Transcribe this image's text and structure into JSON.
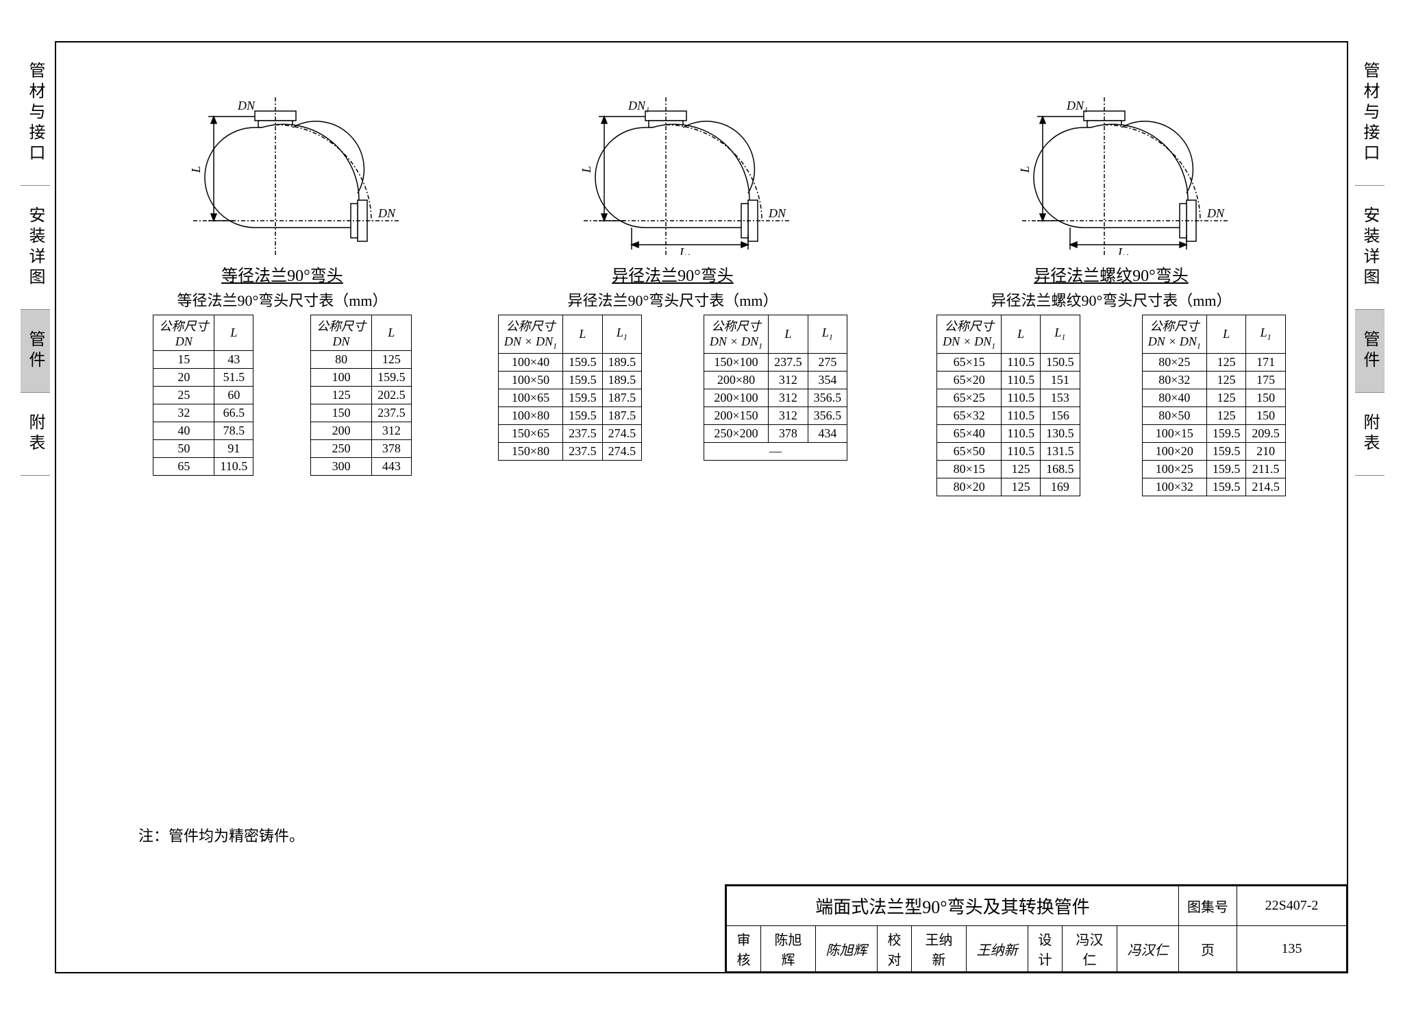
{
  "tabs": [
    "管材与接口",
    "安装详图",
    "管件",
    "附表"
  ],
  "active_tab_index": 2,
  "hrule_positions": [
    260,
    510,
    760,
    1010
  ],
  "sections": [
    {
      "diagram_labels": {
        "top": "DN",
        "side": "L",
        "side2": "",
        "right": "DN"
      },
      "title": "等径法兰90°弯头",
      "subtitle": "等径法兰90°弯头尺寸表（mm）",
      "dual": true,
      "headers": [
        [
          "公称尺寸<br><span class='ital'>DN</span>",
          "<span class='ital'>L</span>"
        ]
      ],
      "left_rows": [
        [
          "15",
          "43"
        ],
        [
          "20",
          "51.5"
        ],
        [
          "25",
          "60"
        ],
        [
          "32",
          "66.5"
        ],
        [
          "40",
          "78.5"
        ],
        [
          "50",
          "91"
        ],
        [
          "65",
          "110.5"
        ]
      ],
      "right_rows": [
        [
          "80",
          "125"
        ],
        [
          "100",
          "159.5"
        ],
        [
          "125",
          "202.5"
        ],
        [
          "150",
          "237.5"
        ],
        [
          "200",
          "312"
        ],
        [
          "250",
          "378"
        ],
        [
          "300",
          "443"
        ]
      ]
    },
    {
      "diagram_labels": {
        "top": "DN₁",
        "side": "L",
        "side2": "L₁",
        "right": "DN"
      },
      "title": "异径法兰90°弯头",
      "subtitle": "异径法兰90°弯头尺寸表（mm）",
      "dual": true,
      "headers": [
        [
          "公称尺寸<br><span class='ital'>DN × DN</span><span class='sub'>1</span>",
          "<span class='ital'>L</span>",
          "<span class='ital'>L</span><span class='sub'>1</span>"
        ]
      ],
      "left_rows": [
        [
          "100×40",
          "159.5",
          "189.5"
        ],
        [
          "100×50",
          "159.5",
          "189.5"
        ],
        [
          "100×65",
          "159.5",
          "187.5"
        ],
        [
          "100×80",
          "159.5",
          "187.5"
        ],
        [
          "150×65",
          "237.5",
          "274.5"
        ],
        [
          "150×80",
          "237.5",
          "274.5"
        ]
      ],
      "right_rows": [
        [
          "150×100",
          "237.5",
          "275"
        ],
        [
          "200×80",
          "312",
          "354"
        ],
        [
          "200×100",
          "312",
          "356.5"
        ],
        [
          "200×150",
          "312",
          "356.5"
        ],
        [
          "250×200",
          "378",
          "434"
        ],
        [
          "—",
          "",
          ""
        ]
      ]
    },
    {
      "diagram_labels": {
        "top": "DN₁",
        "side": "L",
        "side2": "L₁",
        "right": "DN"
      },
      "title": "异径法兰螺纹90°弯头",
      "subtitle": "异径法兰螺纹90°弯头尺寸表（mm）",
      "dual": true,
      "headers": [
        [
          "公称尺寸<br><span class='ital'>DN × DN</span><span class='sub'>1</span>",
          "<span class='ital'>L</span>",
          "<span class='ital'>L</span><span class='sub'>1</span>"
        ]
      ],
      "left_rows": [
        [
          "65×15",
          "110.5",
          "150.5"
        ],
        [
          "65×20",
          "110.5",
          "151"
        ],
        [
          "65×25",
          "110.5",
          "153"
        ],
        [
          "65×32",
          "110.5",
          "156"
        ],
        [
          "65×40",
          "110.5",
          "130.5"
        ],
        [
          "65×50",
          "110.5",
          "131.5"
        ],
        [
          "80×15",
          "125",
          "168.5"
        ],
        [
          "80×20",
          "125",
          "169"
        ]
      ],
      "right_rows": [
        [
          "80×25",
          "125",
          "171"
        ],
        [
          "80×32",
          "125",
          "175"
        ],
        [
          "80×40",
          "125",
          "150"
        ],
        [
          "80×50",
          "125",
          "150"
        ],
        [
          "100×15",
          "159.5",
          "209.5"
        ],
        [
          "100×20",
          "159.5",
          "210"
        ],
        [
          "100×25",
          "159.5",
          "211.5"
        ],
        [
          "100×32",
          "159.5",
          "214.5"
        ]
      ]
    }
  ],
  "note": "注：管件均为精密铸件。",
  "title_block": {
    "main_title": "端面式法兰型90°弯头及其转换管件",
    "set_label": "图集号",
    "set_number": "22S407-2",
    "page_label": "页",
    "page_number": "135",
    "rows": [
      {
        "role": "审核",
        "name": "陈旭辉",
        "sig": "陈旭辉"
      },
      {
        "role": "校对",
        "name": "王纳新",
        "sig": "王纳新"
      },
      {
        "role": "设计",
        "name": "冯汉仁",
        "sig": "冯汉仁"
      }
    ]
  },
  "diagram_style": {
    "stroke": "#000",
    "dash": "6,3,2,3",
    "font_size": 18
  }
}
